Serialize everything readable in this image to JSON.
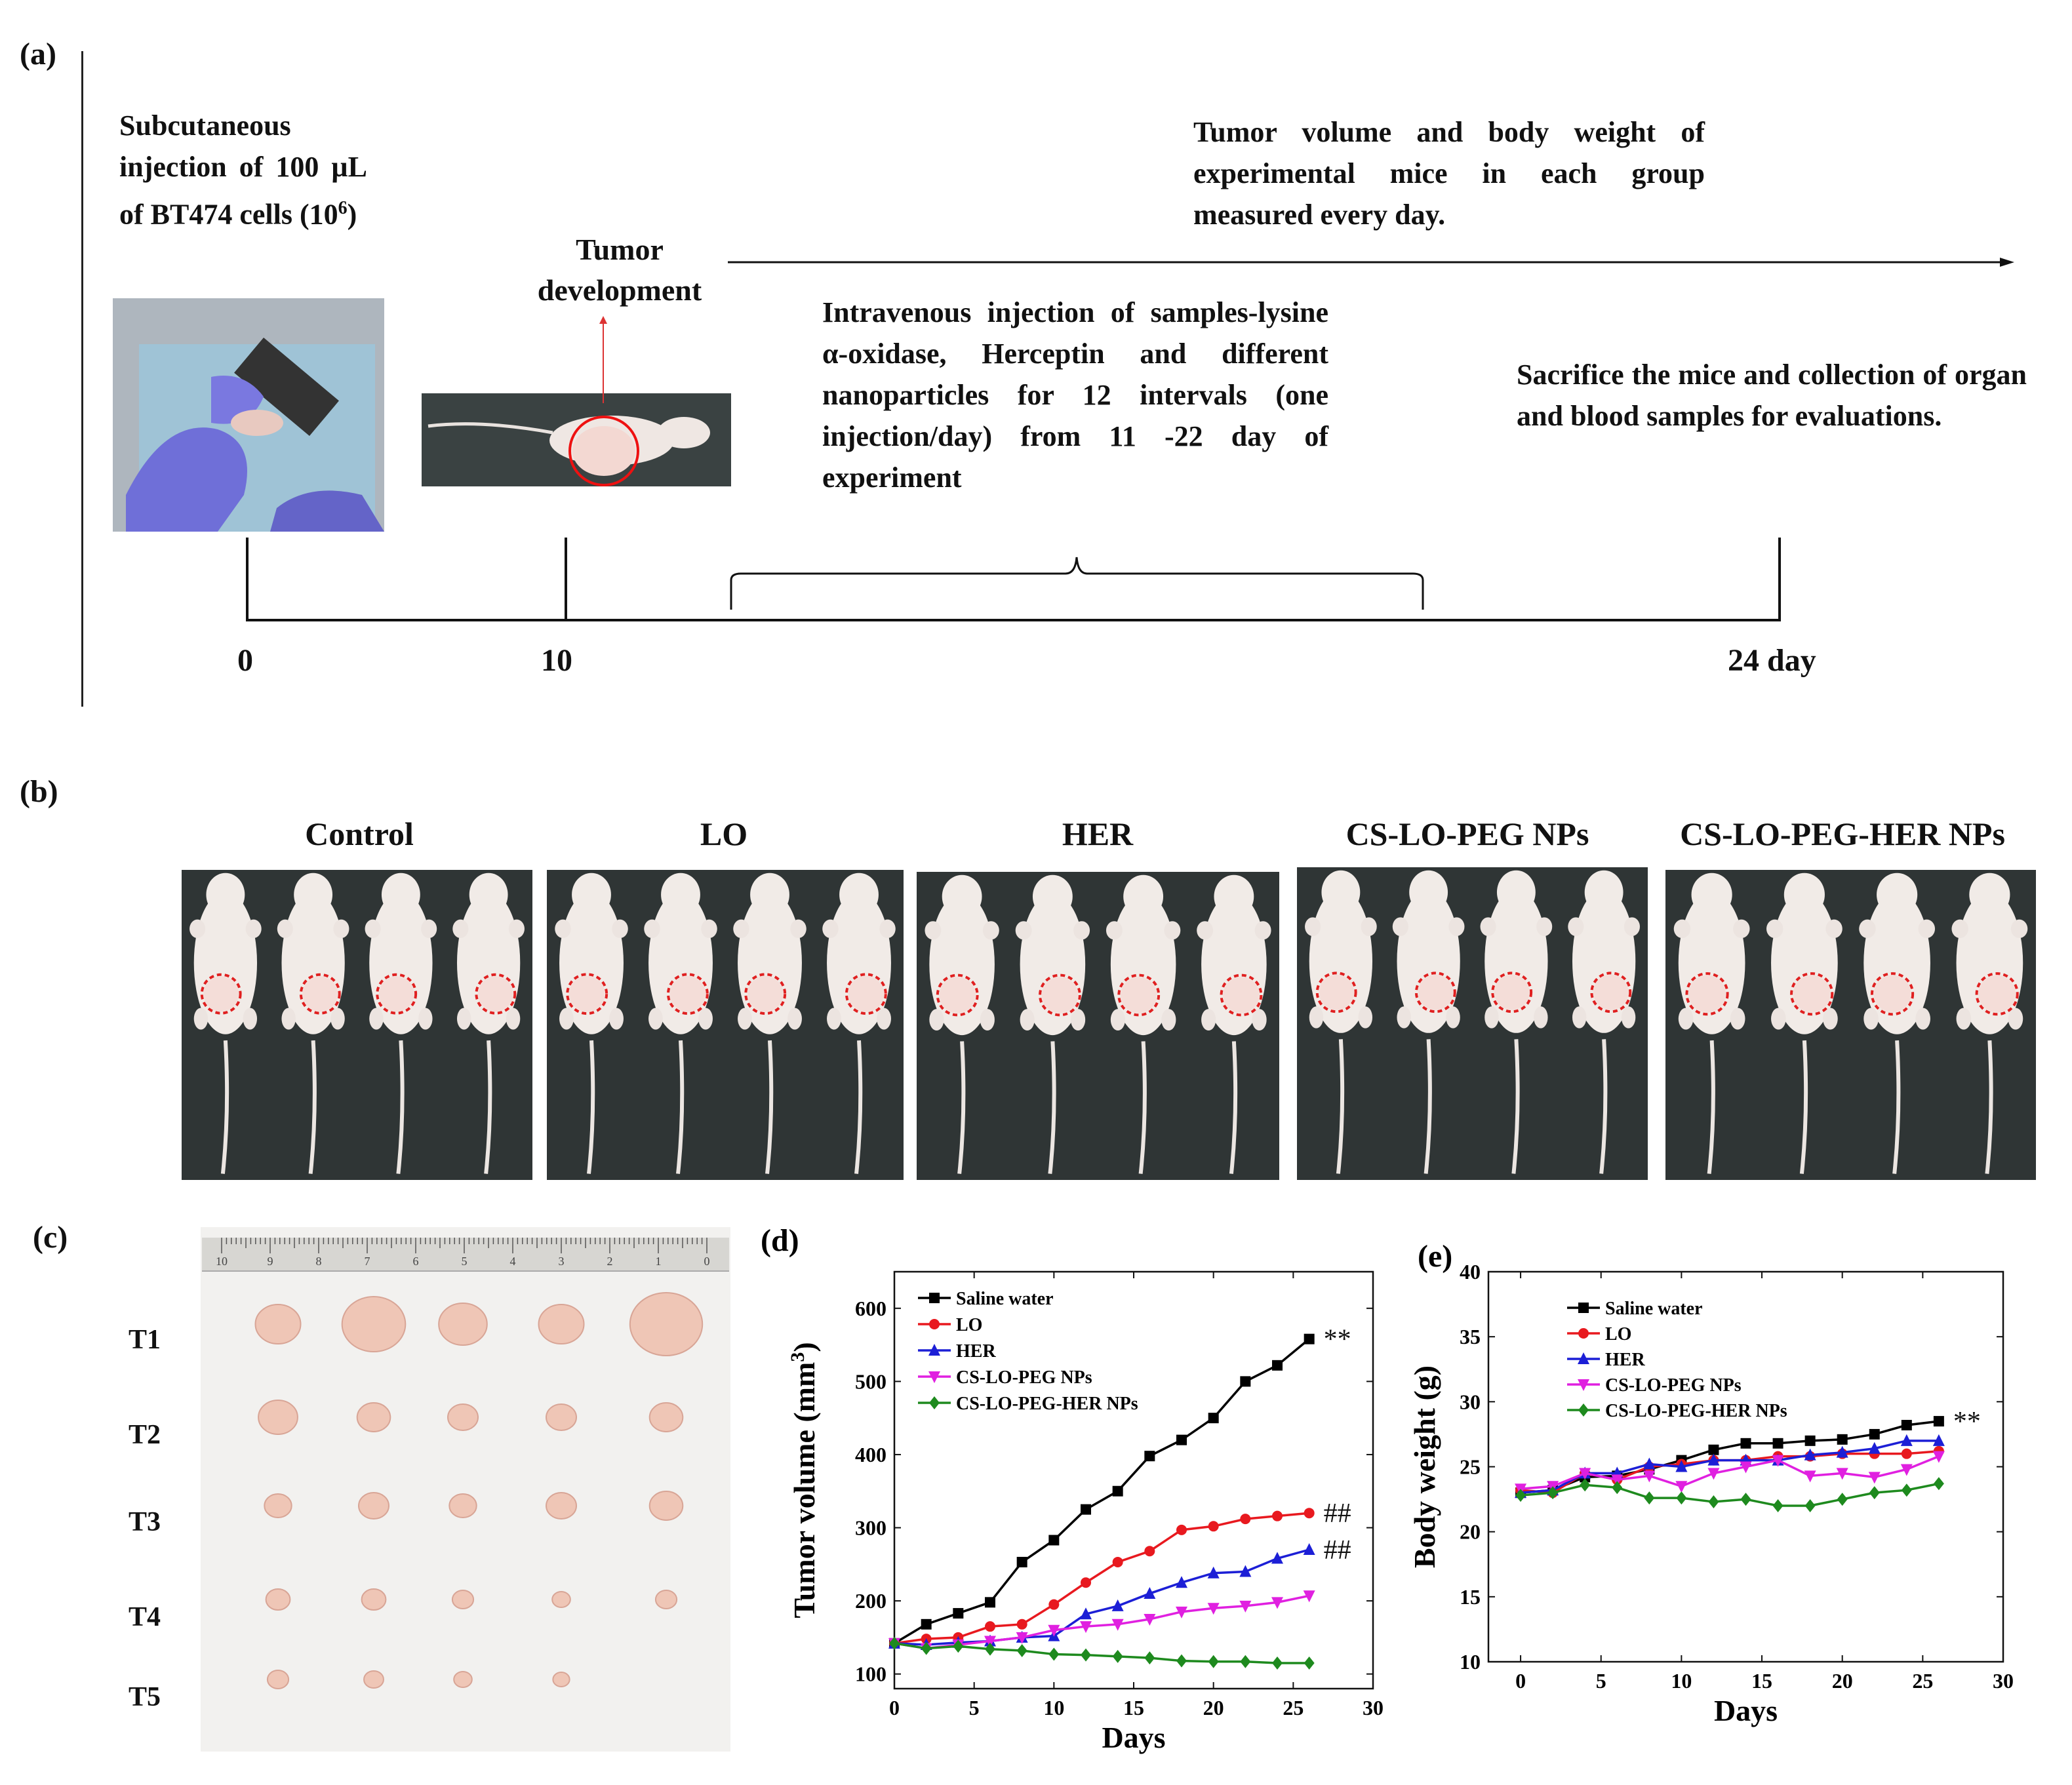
{
  "panel_a": {
    "label": "(a)",
    "step1_text": "Subcutaneous injection of 100 µL of BT474 cells (10",
    "step1_sup": "6",
    "step1_tail": ")",
    "tumor_dev_line1": "Tumor",
    "tumor_dev_line2": "development",
    "measure_text": "Tumor volume and body weight of experimental mice in each group measured every day.",
    "injection_text": "Intravenous injection of samples-lysine α-oxidase, Herceptin and different nanoparticles for 12 intervals (one injection/day) from 11 -22 day of experiment",
    "sacrifice_text": "Sacrifice the mice and collection of organ and blood samples for evaluations.",
    "timeline_labels": [
      "0",
      "10",
      "24 day"
    ]
  },
  "panel_b": {
    "label": "(b)",
    "groups": [
      "Control",
      "LO",
      "HER",
      "CS-LO-PEG NPs",
      "CS-LO-PEG-HER NPs"
    ]
  },
  "panel_c": {
    "label": "(c)",
    "rows": [
      "T1",
      "T2",
      "T3",
      "T4",
      "T5"
    ],
    "ruler_numbers": [
      "10",
      "9",
      "8",
      "7",
      "6",
      "5",
      "4",
      "3",
      "2",
      "1",
      "0"
    ]
  },
  "chart_data": [
    {
      "panel": "(d)",
      "type": "line",
      "xlabel": "Days",
      "ylabel": "Tumor volume (mm",
      "ylabel_sup": "3",
      "ylabel_tail": ")",
      "xlim": [
        0,
        30
      ],
      "ylim": [
        80,
        650
      ],
      "xticks": [
        0,
        5,
        10,
        15,
        20,
        25,
        30
      ],
      "yticks": [
        100,
        200,
        300,
        400,
        500,
        600
      ],
      "x": [
        0,
        2,
        4,
        6,
        8,
        10,
        12,
        14,
        16,
        18,
        20,
        22,
        24,
        26
      ],
      "series": [
        {
          "name": "Saline water",
          "color": "#000000",
          "marker": "square",
          "values": [
            142,
            168,
            183,
            198,
            253,
            283,
            325,
            350,
            398,
            420,
            450,
            500,
            522,
            558
          ]
        },
        {
          "name": "LO",
          "color": "#e8191f",
          "marker": "circle",
          "values": [
            142,
            148,
            150,
            165,
            168,
            195,
            225,
            253,
            268,
            297,
            302,
            312,
            316,
            320
          ]
        },
        {
          "name": "HER",
          "color": "#1c1fd6",
          "marker": "triangle-up",
          "values": [
            142,
            140,
            143,
            145,
            150,
            152,
            182,
            193,
            210,
            225,
            238,
            240,
            258,
            270
          ]
        },
        {
          "name": "CS-LO-PEG NPs",
          "color": "#e020e0",
          "marker": "triangle-down",
          "values": [
            142,
            135,
            140,
            145,
            150,
            160,
            165,
            168,
            175,
            185,
            190,
            193,
            198,
            207
          ]
        },
        {
          "name": "CS-LO-PEG-HER NPs",
          "color": "#1e8a1e",
          "marker": "diamond",
          "values": [
            142,
            135,
            138,
            134,
            132,
            127,
            126,
            124,
            122,
            118,
            117,
            117,
            115,
            115
          ]
        }
      ],
      "annotations": [
        {
          "text": "**",
          "series": "Saline water"
        },
        {
          "text": "##",
          "series": "LO"
        },
        {
          "text": "##",
          "series": "HER"
        }
      ]
    },
    {
      "panel": "(e)",
      "type": "line",
      "xlabel": "Days",
      "ylabel": "Body weight (g)",
      "xlim": [
        -2,
        30
      ],
      "ylim": [
        10,
        40
      ],
      "xticks": [
        0,
        5,
        10,
        15,
        20,
        25,
        30
      ],
      "yticks": [
        10,
        15,
        20,
        25,
        30,
        35,
        40
      ],
      "x": [
        0,
        2,
        4,
        6,
        8,
        10,
        12,
        14,
        16,
        18,
        20,
        22,
        24,
        26
      ],
      "series": [
        {
          "name": "Saline water",
          "color": "#000000",
          "marker": "square",
          "values": [
            23.0,
            23.2,
            24.2,
            24.3,
            24.8,
            25.5,
            26.3,
            26.8,
            26.8,
            27.0,
            27.1,
            27.5,
            28.2,
            28.5
          ]
        },
        {
          "name": "LO",
          "color": "#e8191f",
          "marker": "circle",
          "values": [
            23.2,
            23.0,
            24.5,
            24.0,
            25.0,
            25.2,
            25.5,
            25.5,
            25.8,
            25.8,
            26.0,
            26.0,
            26.0,
            26.2
          ]
        },
        {
          "name": "HER",
          "color": "#1c1fd6",
          "marker": "triangle-up",
          "values": [
            23.0,
            23.2,
            24.5,
            24.5,
            25.2,
            25.0,
            25.5,
            25.5,
            25.5,
            25.9,
            26.1,
            26.4,
            27.0,
            27.0
          ]
        },
        {
          "name": "CS-LO-PEG NPs",
          "color": "#e020e0",
          "marker": "triangle-down",
          "values": [
            23.3,
            23.5,
            24.5,
            24.0,
            24.3,
            23.5,
            24.5,
            25.0,
            25.5,
            24.3,
            24.5,
            24.2,
            24.8,
            25.8
          ]
        },
        {
          "name": "CS-LO-PEG-HER NPs",
          "color": "#1e8a1e",
          "marker": "diamond",
          "values": [
            22.8,
            23.0,
            23.6,
            23.4,
            22.6,
            22.6,
            22.3,
            22.5,
            22.0,
            22.0,
            22.5,
            23.0,
            23.2,
            23.7
          ]
        }
      ],
      "annotations": [
        {
          "text": "**",
          "series": "Saline water"
        }
      ]
    }
  ]
}
